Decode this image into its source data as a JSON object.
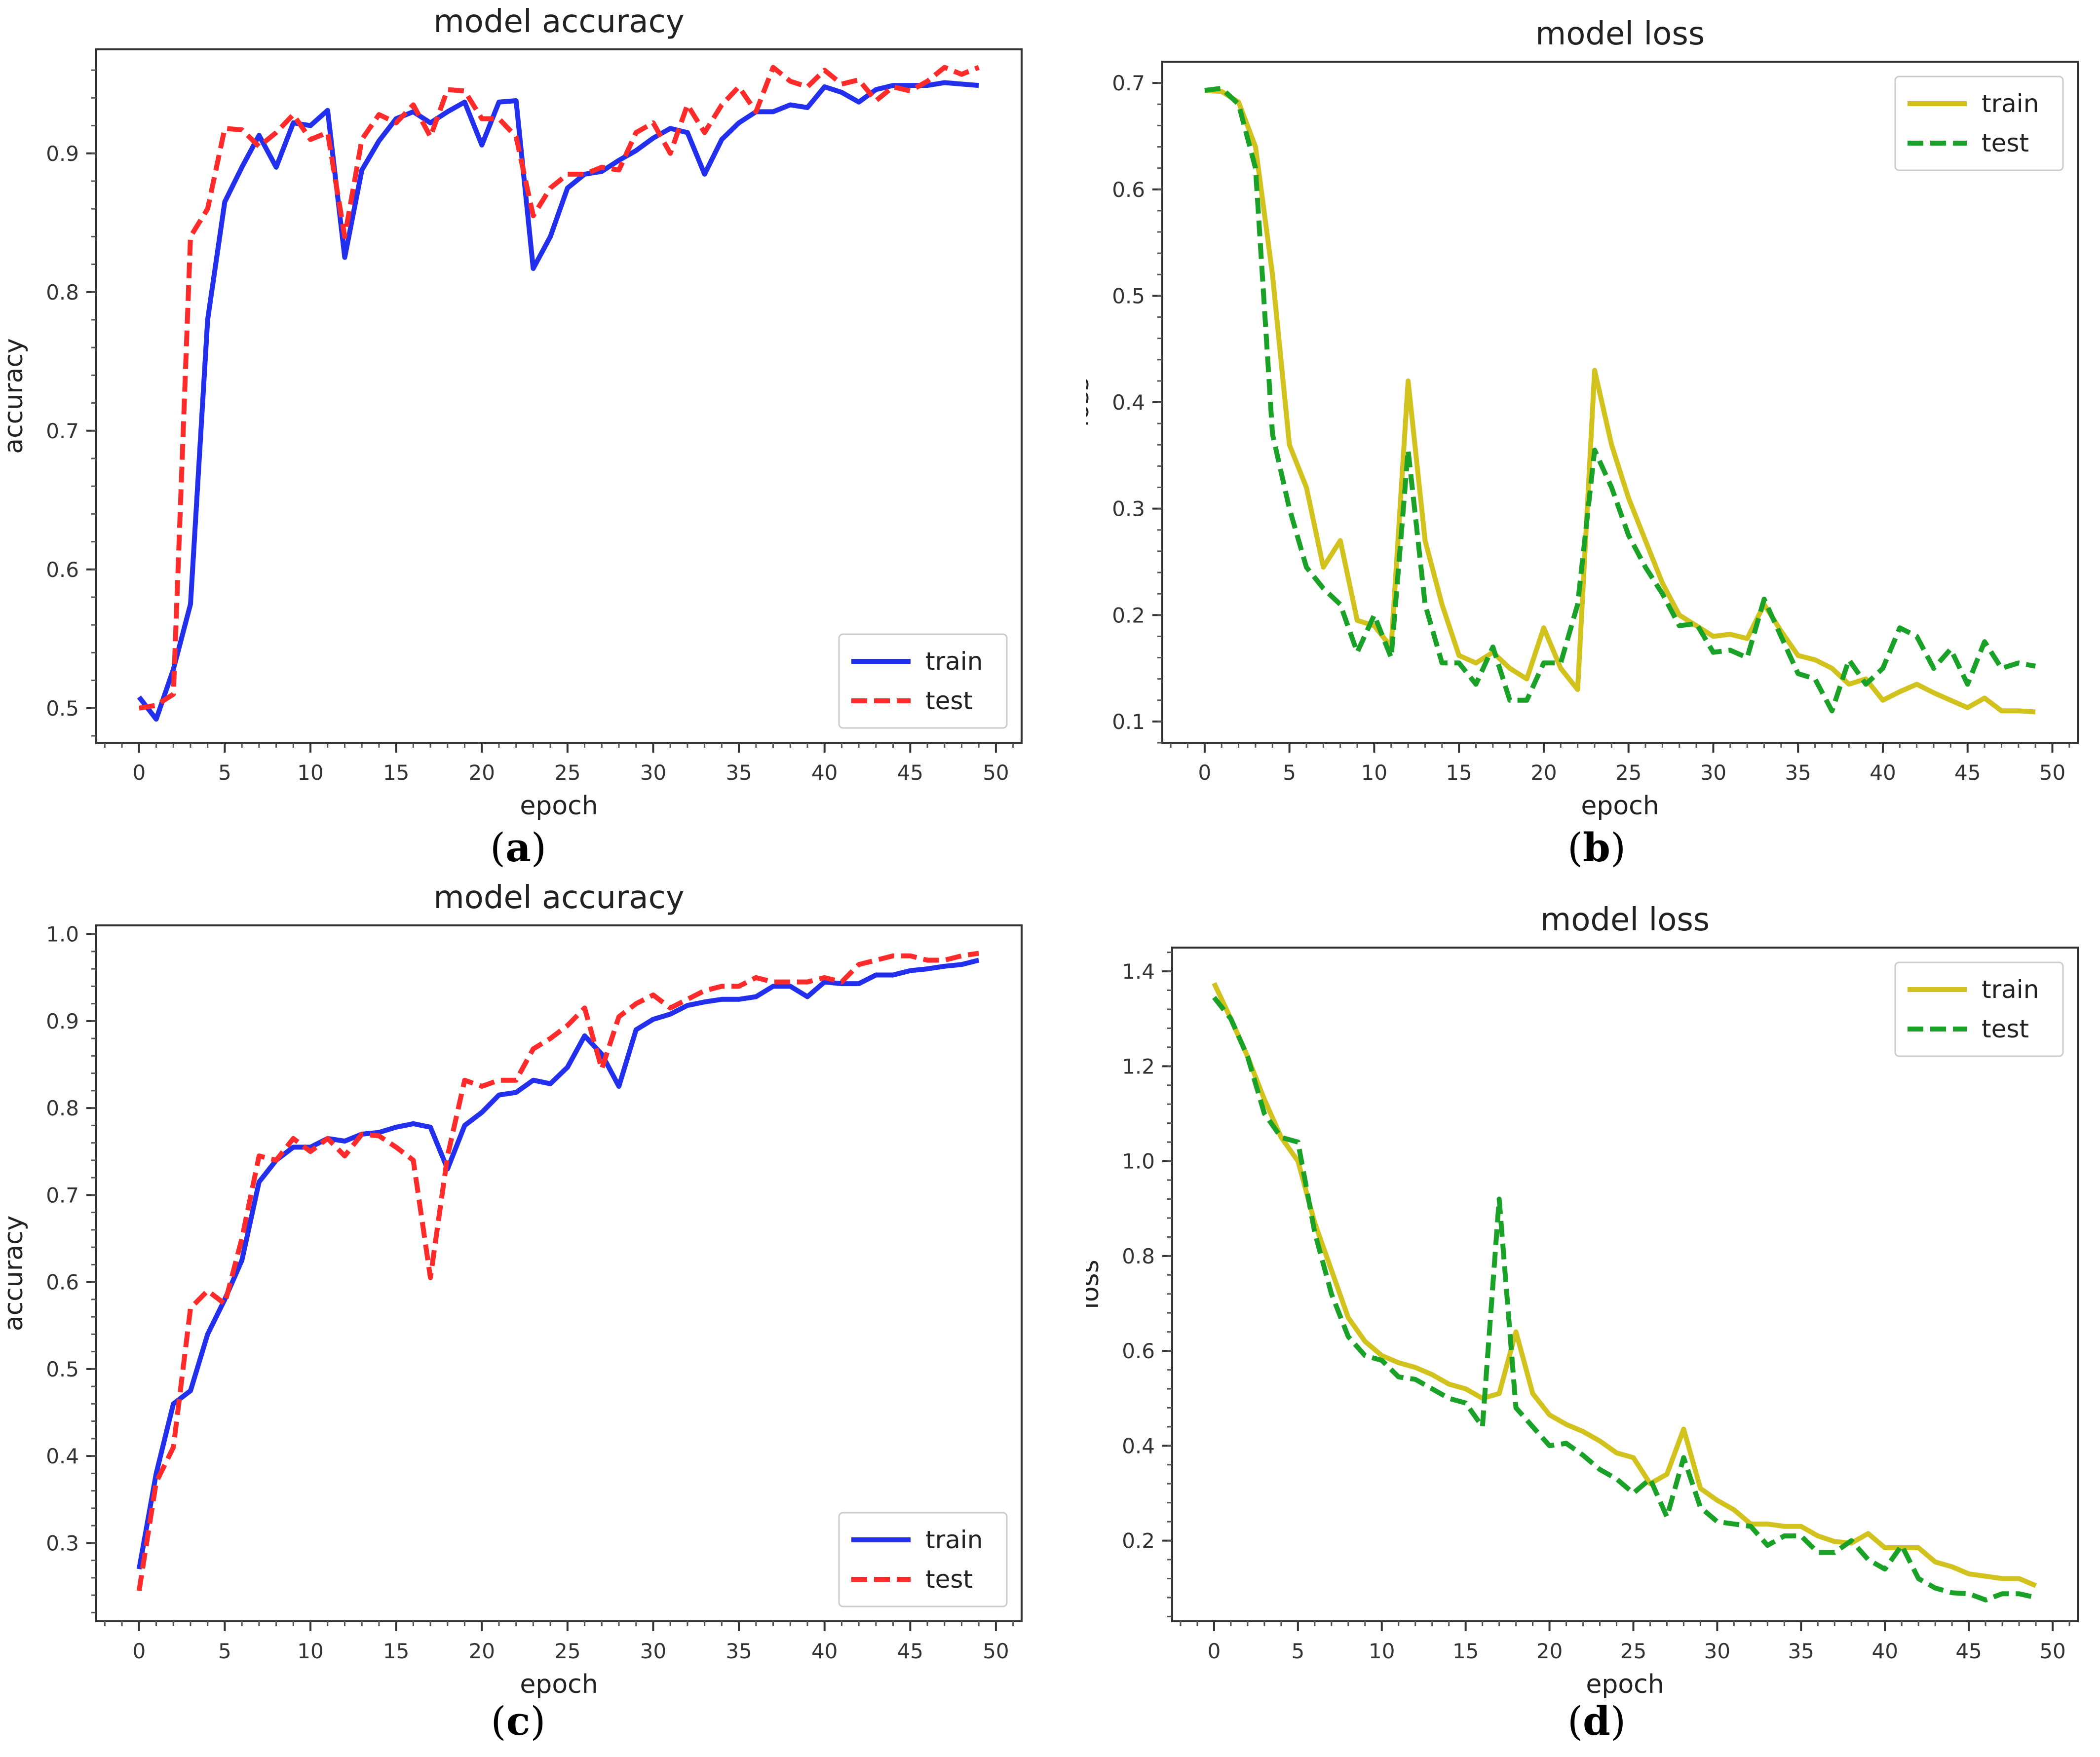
{
  "colors": {
    "blue": "#2230ee",
    "red": "#ff2a2a",
    "yellow": "#d2c21e",
    "green": "#1aa228"
  },
  "chart_data": [
    {
      "type": "line",
      "caption": "a",
      "title": "model accuracy",
      "xlabel": "epoch",
      "ylabel": "accuracy",
      "xlim": [
        -2.5,
        51.5
      ],
      "ylim": [
        0.475,
        0.975
      ],
      "xticks": [
        0,
        5,
        10,
        15,
        20,
        25,
        30,
        35,
        40,
        45,
        50
      ],
      "yticks": [
        0.5,
        0.6,
        0.7,
        0.8,
        0.9
      ],
      "ytick_labels": [
        "0.5",
        "0.6",
        "0.7",
        "0.8",
        "0.9"
      ],
      "legend_position": "lower-right",
      "series": [
        {
          "name": "train",
          "style": "solid",
          "color": "#2230ee",
          "x": [
            0,
            1,
            2,
            3,
            4,
            5,
            6,
            7,
            8,
            9,
            10,
            11,
            12,
            13,
            14,
            15,
            16,
            17,
            18,
            19,
            20,
            21,
            22,
            23,
            24,
            25,
            26,
            27,
            28,
            29,
            30,
            31,
            32,
            33,
            34,
            35,
            36,
            37,
            38,
            39,
            40,
            41,
            42,
            43,
            44,
            45,
            46,
            47,
            48,
            49
          ],
          "values": [
            0.508,
            0.492,
            0.528,
            0.575,
            0.78,
            0.865,
            0.89,
            0.913,
            0.89,
            0.922,
            0.92,
            0.931,
            0.825,
            0.888,
            0.909,
            0.925,
            0.93,
            0.922,
            0.93,
            0.937,
            0.906,
            0.937,
            0.938,
            0.817,
            0.84,
            0.875,
            0.885,
            0.887,
            0.895,
            0.902,
            0.911,
            0.918,
            0.915,
            0.885,
            0.91,
            0.922,
            0.93,
            0.93,
            0.935,
            0.933,
            0.948,
            0.944,
            0.937,
            0.946,
            0.949,
            0.949,
            0.949,
            0.951,
            0.95,
            0.949
          ]
        },
        {
          "name": "test",
          "style": "dashed",
          "color": "#ff2a2a",
          "x": [
            0,
            1,
            2,
            3,
            4,
            5,
            6,
            7,
            8,
            9,
            10,
            11,
            12,
            13,
            14,
            15,
            16,
            17,
            18,
            19,
            20,
            21,
            22,
            23,
            24,
            25,
            26,
            27,
            28,
            29,
            30,
            31,
            32,
            33,
            34,
            35,
            36,
            37,
            38,
            39,
            40,
            41,
            42,
            43,
            44,
            45,
            46,
            47,
            48,
            49
          ],
          "values": [
            0.5,
            0.502,
            0.51,
            0.84,
            0.86,
            0.918,
            0.917,
            0.905,
            0.915,
            0.928,
            0.91,
            0.915,
            0.84,
            0.91,
            0.928,
            0.922,
            0.935,
            0.912,
            0.946,
            0.945,
            0.925,
            0.925,
            0.912,
            0.855,
            0.875,
            0.885,
            0.885,
            0.89,
            0.888,
            0.915,
            0.922,
            0.9,
            0.935,
            0.915,
            0.935,
            0.948,
            0.93,
            0.962,
            0.952,
            0.948,
            0.96,
            0.95,
            0.953,
            0.938,
            0.948,
            0.945,
            0.952,
            0.962,
            0.957,
            0.962
          ]
        }
      ]
    },
    {
      "type": "line",
      "caption": "b",
      "title": "model loss",
      "xlabel": "epoch",
      "ylabel": "loss",
      "xlim": [
        -2.5,
        51.5
      ],
      "ylim": [
        0.08,
        0.72
      ],
      "xticks": [
        0,
        5,
        10,
        15,
        20,
        25,
        30,
        35,
        40,
        45,
        50
      ],
      "yticks": [
        0.1,
        0.2,
        0.3,
        0.4,
        0.5,
        0.6,
        0.7
      ],
      "ytick_labels": [
        "0.1",
        "0.2",
        "0.3",
        "0.4",
        "0.5",
        "0.6",
        "0.7"
      ],
      "legend_position": "upper-right",
      "series": [
        {
          "name": "train",
          "style": "solid",
          "color": "#d2c21e",
          "x": [
            0,
            1,
            2,
            3,
            4,
            5,
            6,
            7,
            8,
            9,
            10,
            11,
            12,
            13,
            14,
            15,
            16,
            17,
            18,
            19,
            20,
            21,
            22,
            23,
            24,
            25,
            26,
            27,
            28,
            29,
            30,
            31,
            32,
            33,
            34,
            35,
            36,
            37,
            38,
            39,
            40,
            41,
            42,
            43,
            44,
            45,
            46,
            47,
            48,
            49
          ],
          "values": [
            0.693,
            0.692,
            0.682,
            0.64,
            0.52,
            0.36,
            0.32,
            0.245,
            0.27,
            0.195,
            0.19,
            0.17,
            0.42,
            0.27,
            0.21,
            0.162,
            0.155,
            0.165,
            0.15,
            0.14,
            0.188,
            0.15,
            0.13,
            0.43,
            0.36,
            0.31,
            0.27,
            0.23,
            0.2,
            0.19,
            0.18,
            0.182,
            0.178,
            0.21,
            0.185,
            0.162,
            0.158,
            0.15,
            0.135,
            0.14,
            0.12,
            0.128,
            0.135,
            0.127,
            0.12,
            0.113,
            0.122,
            0.11,
            0.11,
            0.109
          ]
        },
        {
          "name": "test",
          "style": "dashed",
          "color": "#1aa228",
          "x": [
            0,
            1,
            2,
            3,
            4,
            5,
            6,
            7,
            8,
            9,
            10,
            11,
            12,
            13,
            14,
            15,
            16,
            17,
            18,
            19,
            20,
            21,
            22,
            23,
            24,
            25,
            26,
            27,
            28,
            29,
            30,
            31,
            32,
            33,
            34,
            35,
            36,
            37,
            38,
            39,
            40,
            41,
            42,
            43,
            44,
            45,
            46,
            47,
            48,
            49
          ],
          "values": [
            0.693,
            0.695,
            0.68,
            0.62,
            0.37,
            0.3,
            0.245,
            0.225,
            0.21,
            0.165,
            0.2,
            0.16,
            0.355,
            0.21,
            0.155,
            0.155,
            0.135,
            0.17,
            0.12,
            0.12,
            0.155,
            0.155,
            0.21,
            0.355,
            0.32,
            0.275,
            0.245,
            0.22,
            0.19,
            0.192,
            0.165,
            0.167,
            0.16,
            0.215,
            0.18,
            0.145,
            0.14,
            0.11,
            0.158,
            0.135,
            0.15,
            0.188,
            0.18,
            0.15,
            0.168,
            0.135,
            0.175,
            0.15,
            0.155,
            0.152
          ]
        }
      ]
    },
    {
      "type": "line",
      "caption": "c",
      "title": "model accuracy",
      "xlabel": "epoch",
      "ylabel": "accuracy",
      "xlim": [
        -2.5,
        51.5
      ],
      "ylim": [
        0.21,
        1.01
      ],
      "xticks": [
        0,
        5,
        10,
        15,
        20,
        25,
        30,
        35,
        40,
        45,
        50
      ],
      "yticks": [
        0.3,
        0.4,
        0.5,
        0.6,
        0.7,
        0.8,
        0.9,
        1.0
      ],
      "ytick_labels": [
        "0.3",
        "0.4",
        "0.5",
        "0.6",
        "0.7",
        "0.8",
        "0.9",
        "1.0"
      ],
      "legend_position": "lower-right",
      "series": [
        {
          "name": "train",
          "style": "solid",
          "color": "#2230ee",
          "x": [
            0,
            1,
            2,
            3,
            4,
            5,
            6,
            7,
            8,
            9,
            10,
            11,
            12,
            13,
            14,
            15,
            16,
            17,
            18,
            19,
            20,
            21,
            22,
            23,
            24,
            25,
            26,
            27,
            28,
            29,
            30,
            31,
            32,
            33,
            34,
            35,
            36,
            37,
            38,
            39,
            40,
            41,
            42,
            43,
            44,
            45,
            46,
            47,
            48,
            49
          ],
          "values": [
            0.27,
            0.38,
            0.46,
            0.475,
            0.54,
            0.58,
            0.625,
            0.715,
            0.74,
            0.755,
            0.755,
            0.765,
            0.762,
            0.77,
            0.772,
            0.778,
            0.782,
            0.778,
            0.73,
            0.78,
            0.795,
            0.815,
            0.818,
            0.832,
            0.828,
            0.847,
            0.883,
            0.862,
            0.825,
            0.89,
            0.902,
            0.908,
            0.918,
            0.922,
            0.925,
            0.925,
            0.928,
            0.94,
            0.94,
            0.928,
            0.945,
            0.943,
            0.943,
            0.953,
            0.953,
            0.958,
            0.96,
            0.963,
            0.965,
            0.97
          ]
        },
        {
          "name": "test",
          "style": "dashed",
          "color": "#ff2a2a",
          "x": [
            0,
            1,
            2,
            3,
            4,
            5,
            6,
            7,
            8,
            9,
            10,
            11,
            12,
            13,
            14,
            15,
            16,
            17,
            18,
            19,
            20,
            21,
            22,
            23,
            24,
            25,
            26,
            27,
            28,
            29,
            30,
            31,
            32,
            33,
            34,
            35,
            36,
            37,
            38,
            39,
            40,
            41,
            42,
            43,
            44,
            45,
            46,
            47,
            48,
            49
          ],
          "values": [
            0.245,
            0.37,
            0.41,
            0.57,
            0.59,
            0.575,
            0.65,
            0.745,
            0.74,
            0.765,
            0.75,
            0.765,
            0.745,
            0.77,
            0.768,
            0.755,
            0.74,
            0.605,
            0.745,
            0.832,
            0.825,
            0.832,
            0.832,
            0.868,
            0.88,
            0.895,
            0.915,
            0.845,
            0.905,
            0.92,
            0.93,
            0.915,
            0.925,
            0.935,
            0.94,
            0.94,
            0.95,
            0.945,
            0.945,
            0.945,
            0.95,
            0.945,
            0.965,
            0.97,
            0.975,
            0.975,
            0.97,
            0.97,
            0.975,
            0.978
          ]
        }
      ]
    },
    {
      "type": "line",
      "caption": "d",
      "title": "model loss",
      "xlabel": "epoch",
      "ylabel": "loss",
      "xlim": [
        -2.5,
        51.5
      ],
      "ylim": [
        0.03,
        1.45
      ],
      "xticks": [
        0,
        5,
        10,
        15,
        20,
        25,
        30,
        35,
        40,
        45,
        50
      ],
      "yticks": [
        0.2,
        0.4,
        0.6,
        0.8,
        1.0,
        1.2,
        1.4
      ],
      "ytick_labels": [
        "0.2",
        "0.4",
        "0.6",
        "0.8",
        "1.0",
        "1.2",
        "1.4"
      ],
      "legend_position": "upper-right",
      "series": [
        {
          "name": "train",
          "style": "solid",
          "color": "#d2c21e",
          "x": [
            0,
            1,
            2,
            3,
            4,
            5,
            6,
            7,
            8,
            9,
            10,
            11,
            12,
            13,
            14,
            15,
            16,
            17,
            18,
            19,
            20,
            21,
            22,
            23,
            24,
            25,
            26,
            27,
            28,
            29,
            30,
            31,
            32,
            33,
            34,
            35,
            36,
            37,
            38,
            39,
            40,
            41,
            42,
            43,
            44,
            45,
            46,
            47,
            48,
            49
          ],
          "values": [
            1.375,
            1.3,
            1.22,
            1.13,
            1.05,
            1.0,
            0.87,
            0.77,
            0.67,
            0.62,
            0.59,
            0.575,
            0.565,
            0.55,
            0.53,
            0.52,
            0.5,
            0.51,
            0.64,
            0.51,
            0.465,
            0.445,
            0.43,
            0.41,
            0.385,
            0.375,
            0.32,
            0.34,
            0.435,
            0.31,
            0.285,
            0.265,
            0.235,
            0.235,
            0.23,
            0.23,
            0.21,
            0.198,
            0.195,
            0.215,
            0.185,
            0.185,
            0.185,
            0.155,
            0.145,
            0.13,
            0.125,
            0.12,
            0.12,
            0.105
          ]
        },
        {
          "name": "test",
          "style": "dashed",
          "color": "#1aa228",
          "x": [
            0,
            1,
            2,
            3,
            4,
            5,
            6,
            7,
            8,
            9,
            10,
            11,
            12,
            13,
            14,
            15,
            16,
            17,
            18,
            19,
            20,
            21,
            22,
            23,
            24,
            25,
            26,
            27,
            28,
            29,
            30,
            31,
            32,
            33,
            34,
            35,
            36,
            37,
            38,
            39,
            40,
            41,
            42,
            43,
            44,
            45,
            46,
            47,
            48,
            49
          ],
          "values": [
            1.345,
            1.3,
            1.22,
            1.1,
            1.05,
            1.04,
            0.85,
            0.72,
            0.63,
            0.59,
            0.58,
            0.545,
            0.54,
            0.52,
            0.5,
            0.49,
            0.44,
            0.92,
            0.48,
            0.44,
            0.4,
            0.405,
            0.38,
            0.35,
            0.33,
            0.3,
            0.33,
            0.25,
            0.375,
            0.27,
            0.24,
            0.235,
            0.23,
            0.19,
            0.21,
            0.21,
            0.175,
            0.175,
            0.2,
            0.16,
            0.14,
            0.19,
            0.12,
            0.1,
            0.09,
            0.088,
            0.075,
            0.088,
            0.088,
            0.08
          ]
        }
      ]
    }
  ]
}
